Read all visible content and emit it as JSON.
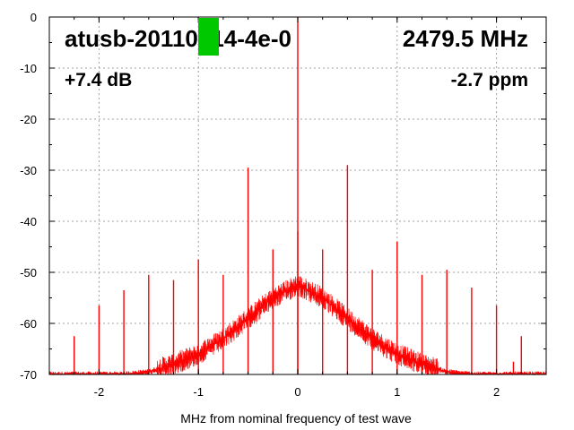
{
  "chart_data": {
    "type": "line",
    "title_left": "atusb-20110214-4e-0",
    "title_right": "2479.5 MHz",
    "annotation_left": "+7.4 dB",
    "annotation_right": "-2.7 ppm",
    "xlabel": "MHz from nominal frequency of test wave",
    "ylabel": "",
    "xlim": [
      -2.5,
      2.5
    ],
    "ylim": [
      -70,
      0
    ],
    "xticks": [
      -2,
      -1,
      0,
      1,
      2
    ],
    "xtick_labels": [
      "-2",
      "-1",
      "0",
      "1",
      "2"
    ],
    "yticks": [
      0,
      -10,
      -20,
      -30,
      -40,
      -50,
      -60,
      -70
    ],
    "ytick_labels": [
      "0",
      "-10",
      "-20",
      "-30",
      "-40",
      "-50",
      "-60",
      "-70"
    ],
    "grid": true,
    "series_color": "#ff0000",
    "redaction_color": "#00c800",
    "noise_floor": {
      "x": [
        -2.5,
        -2.25,
        -2.0,
        -1.75,
        -1.5,
        -1.25,
        -1.0,
        -0.75,
        -0.5,
        -0.25,
        0.0,
        0.25,
        0.5,
        0.75,
        1.0,
        1.25,
        1.5,
        1.75,
        2.0,
        2.25,
        2.5
      ],
      "y": [
        -70,
        -70,
        -70,
        -70,
        -69.5,
        -68,
        -66,
        -63,
        -59,
        -55,
        -52.5,
        -55,
        -59,
        -63,
        -66,
        -68,
        -69.5,
        -70,
        -70,
        -70,
        -70
      ]
    },
    "spurs": [
      {
        "x": -2.25,
        "y": -62.5
      },
      {
        "x": -2.0,
        "y": -56.5
      },
      {
        "x": -1.75,
        "y": -53.5
      },
      {
        "x": -1.5,
        "y": -50.5
      },
      {
        "x": -1.25,
        "y": -51.5
      },
      {
        "x": -1.0,
        "y": -47.5
      },
      {
        "x": -0.75,
        "y": -50.5
      },
      {
        "x": -0.5,
        "y": -29.5
      },
      {
        "x": -0.25,
        "y": -45.5
      },
      {
        "x": 0.0,
        "y": 0
      },
      {
        "x": 0.0,
        "y": -42
      },
      {
        "x": 0.25,
        "y": -45.5
      },
      {
        "x": 0.5,
        "y": -29
      },
      {
        "x": 0.75,
        "y": -49.5
      },
      {
        "x": 1.0,
        "y": -44
      },
      {
        "x": 1.25,
        "y": -50.5
      },
      {
        "x": 1.5,
        "y": -49.5
      },
      {
        "x": 1.75,
        "y": -53
      },
      {
        "x": 2.0,
        "y": -56.5
      },
      {
        "x": 2.17,
        "y": -67.5
      },
      {
        "x": 2.25,
        "y": -62.5
      }
    ]
  }
}
